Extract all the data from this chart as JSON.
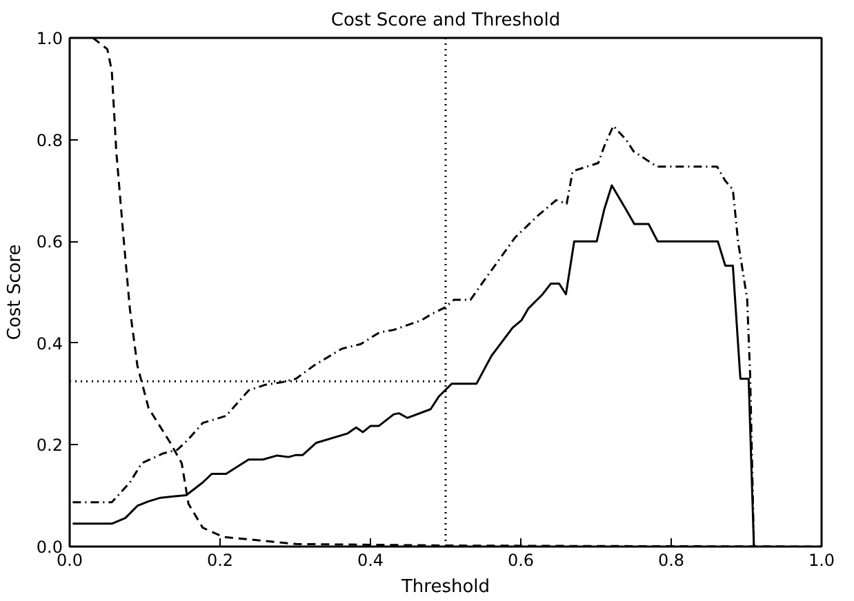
{
  "chart_data": {
    "type": "line",
    "title": "Cost Score and Threshold",
    "xlabel": "Threshold",
    "ylabel": "Cost Score",
    "xlim": [
      0,
      1
    ],
    "ylim": [
      0,
      1
    ],
    "xticks": [
      {
        "value": 0,
        "label": "0.0"
      },
      {
        "value": 0.2,
        "label": "0.2"
      },
      {
        "value": 0.4,
        "label": "0.4"
      },
      {
        "value": 0.6,
        "label": "0.6"
      },
      {
        "value": 0.8,
        "label": "0.8"
      },
      {
        "value": 1,
        "label": "1.0"
      }
    ],
    "yticks": [
      {
        "value": 0,
        "label": "0.0"
      },
      {
        "value": 0.2,
        "label": "0.2"
      },
      {
        "value": 0.4,
        "label": "0.4"
      },
      {
        "value": 0.6,
        "label": "0.6"
      },
      {
        "value": 0.8,
        "label": "0.8"
      },
      {
        "value": 1,
        "label": "1.0"
      }
    ],
    "grid": false,
    "series": [
      {
        "color": "#000000",
        "line_style": "solid",
        "x": [
          0.004,
          0.056,
          0.074,
          0.09,
          0.105,
          0.121,
          0.155,
          0.177,
          0.189,
          0.208,
          0.238,
          0.257,
          0.276,
          0.291,
          0.301,
          0.31,
          0.328,
          0.369,
          0.381,
          0.39,
          0.4,
          0.411,
          0.431,
          0.438,
          0.449,
          0.48,
          0.491,
          0.508,
          0.541,
          0.561,
          0.589,
          0.601,
          0.61,
          0.629,
          0.64,
          0.651,
          0.66,
          0.671,
          0.701,
          0.711,
          0.721,
          0.739,
          0.751,
          0.77,
          0.782,
          0.862,
          0.872,
          0.882,
          0.892,
          0.903,
          0.91
        ],
        "values": [
          0.045,
          0.045,
          0.056,
          0.08,
          0.089,
          0.096,
          0.101,
          0.126,
          0.143,
          0.143,
          0.171,
          0.171,
          0.179,
          0.176,
          0.18,
          0.18,
          0.204,
          0.222,
          0.234,
          0.225,
          0.237,
          0.237,
          0.26,
          0.262,
          0.253,
          0.27,
          0.295,
          0.32,
          0.32,
          0.375,
          0.43,
          0.445,
          0.468,
          0.496,
          0.517,
          0.517,
          0.496,
          0.6,
          0.6,
          0.663,
          0.71,
          0.665,
          0.634,
          0.634,
          0.6,
          0.6,
          0.552,
          0.552,
          0.33,
          0.33,
          0.0
        ]
      },
      {
        "color": "#000000",
        "line_style": "dashed",
        "x": [
          0.031,
          0.05,
          0.056,
          0.062,
          0.071,
          0.08,
          0.09,
          0.105,
          0.133,
          0.149,
          0.158,
          0.177,
          0.204,
          0.301,
          0.5,
          0.7,
          1.0
        ],
        "values": [
          1.0,
          0.978,
          0.936,
          0.777,
          0.618,
          0.468,
          0.356,
          0.272,
          0.206,
          0.164,
          0.084,
          0.037,
          0.019,
          0.005,
          0.002,
          0.001,
          0.0
        ]
      },
      {
        "color": "#000000",
        "line_style": "dashdot",
        "x": [
          0.004,
          0.056,
          0.08,
          0.096,
          0.124,
          0.143,
          0.158,
          0.177,
          0.208,
          0.238,
          0.26,
          0.282,
          0.301,
          0.325,
          0.362,
          0.387,
          0.412,
          0.431,
          0.468,
          0.48,
          0.499,
          0.511,
          0.533,
          0.554,
          0.579,
          0.592,
          0.623,
          0.647,
          0.661,
          0.669,
          0.703,
          0.711,
          0.723,
          0.74,
          0.75,
          0.781,
          0.861,
          0.872,
          0.882,
          0.889,
          0.901,
          0.905,
          0.91
        ],
        "values": [
          0.087,
          0.087,
          0.126,
          0.164,
          0.183,
          0.19,
          0.211,
          0.243,
          0.257,
          0.307,
          0.318,
          0.323,
          0.33,
          0.356,
          0.389,
          0.398,
          0.421,
          0.426,
          0.445,
          0.456,
          0.47,
          0.485,
          0.485,
          0.529,
          0.58,
          0.607,
          0.651,
          0.681,
          0.674,
          0.738,
          0.754,
          0.787,
          0.827,
          0.8,
          0.777,
          0.747,
          0.747,
          0.719,
          0.702,
          0.599,
          0.487,
          0.337,
          0.0
        ]
      },
      {
        "color": "#000000",
        "line_style": "dotted",
        "x": [
          0,
          0.5
        ],
        "values": [
          0.325,
          0.325
        ]
      }
    ],
    "ref_lines": [
      {
        "axis": "x",
        "value": 0.5,
        "color": "#000000",
        "line_style": "dotted"
      }
    ]
  }
}
